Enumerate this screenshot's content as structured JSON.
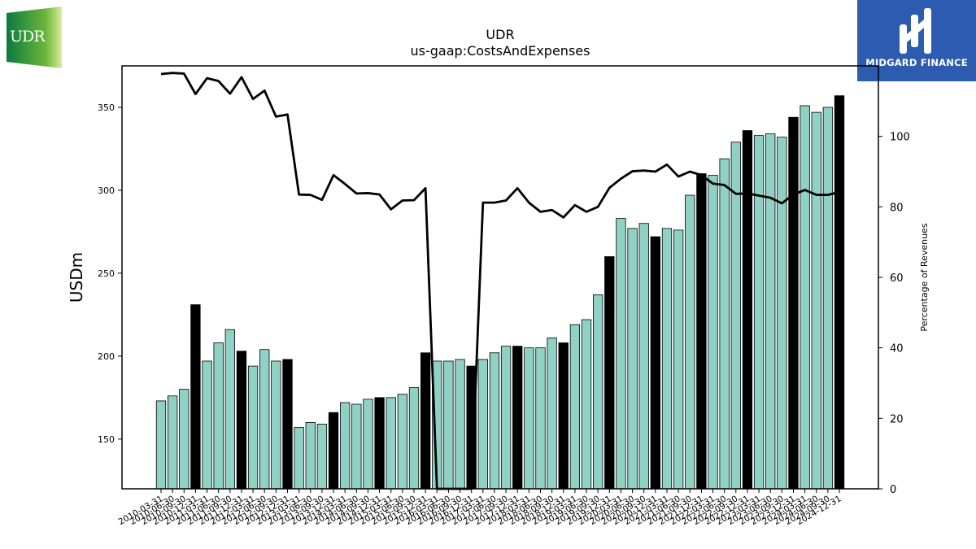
{
  "logos": {
    "left_text": "UDR",
    "right_text": "MIDGARD FINANCE"
  },
  "colors": {
    "bar_default": "#8fd1c4",
    "bar_highlight": "#000000",
    "line": "#000000"
  },
  "chart_data": {
    "type": "bar",
    "title": "UDR",
    "subtitle": "us-gaap:CostsAndExpenses",
    "ylabel": "USDm",
    "y2label": "Percentage of Revenues",
    "ylim": [
      120,
      375
    ],
    "y2lim": [
      0,
      120
    ],
    "yticks": [
      150,
      200,
      250,
      300,
      350
    ],
    "y2ticks": [
      0,
      20,
      40,
      60,
      80,
      100
    ],
    "grid": false,
    "categories": [
      "2010-03-31",
      "2010-06-30",
      "2010-09-30",
      "2010-12-31",
      "2011-03-31",
      "2011-06-30",
      "2011-09-30",
      "2011-12-31",
      "2012-03-31",
      "2012-06-30",
      "2012-09-30",
      "2012-12-31",
      "2013-03-31",
      "2013-06-30",
      "2013-09-30",
      "2013-12-31",
      "2014-03-31",
      "2014-06-30",
      "2014-09-30",
      "2014-12-31",
      "2015-03-31",
      "2015-06-30",
      "2015-09-30",
      "2015-12-31",
      "2016-03-31",
      "2016-06-30",
      "2016-09-30",
      "2016-12-31",
      "2017-03-31",
      "2017-06-30",
      "2017-09-30",
      "2017-12-31",
      "2018-03-31",
      "2018-06-30",
      "2018-09-30",
      "2018-12-31",
      "2019-03-31",
      "2019-06-30",
      "2019-09-30",
      "2019-12-31",
      "2020-03-31",
      "2020-06-30",
      "2020-09-30",
      "2020-12-31",
      "2021-03-31",
      "2021-06-30",
      "2021-09-30",
      "2021-12-31",
      "2022-03-31",
      "2022-06-30",
      "2022-09-30",
      "2022-12-31",
      "2023-03-31",
      "2023-06-30",
      "2023-09-30",
      "2023-12-31",
      "2024-03-31",
      "2024-06-30",
      "2024-09-30",
      "2024-12-31"
    ],
    "series": [
      {
        "type": "bar",
        "axis": "left",
        "values": [
          173,
          176,
          180,
          231,
          197,
          208,
          216,
          203,
          194,
          204,
          197,
          198,
          157,
          160,
          159,
          166,
          172,
          171,
          174,
          175,
          175,
          177,
          181,
          202,
          197,
          197,
          198,
          194,
          198,
          202,
          206,
          206,
          205,
          205,
          211,
          208,
          219,
          222,
          237,
          260,
          283,
          277,
          280,
          272,
          277,
          276,
          297,
          310,
          309,
          319,
          329,
          336,
          333,
          334,
          332,
          344,
          351,
          347,
          350,
          357
        ],
        "highlight": [
          false,
          false,
          false,
          true,
          false,
          false,
          false,
          true,
          false,
          false,
          false,
          true,
          false,
          false,
          false,
          true,
          false,
          false,
          false,
          true,
          false,
          false,
          false,
          true,
          false,
          false,
          false,
          true,
          false,
          false,
          false,
          true,
          false,
          false,
          false,
          true,
          false,
          false,
          false,
          true,
          false,
          false,
          false,
          true,
          false,
          false,
          false,
          true,
          false,
          false,
          false,
          true,
          false,
          false,
          false,
          true,
          false,
          false,
          false,
          true
        ]
      },
      {
        "type": "line",
        "axis": "right",
        "values": [
          117.7,
          118,
          117.8,
          112,
          116.5,
          115.7,
          112.1,
          116.8,
          110.6,
          113,
          105.6,
          106.2,
          83.5,
          83.4,
          82,
          89,
          86.5,
          83.8,
          83.9,
          83.5,
          79.3,
          81.8,
          81.9,
          85.3,
          0,
          0,
          0,
          0,
          81.2,
          81.2,
          81.8,
          85.3,
          81.2,
          78.6,
          79.1,
          77,
          80.5,
          78.6,
          80,
          85.4,
          88,
          90.1,
          90.3,
          90,
          92,
          88.6,
          90,
          89,
          86.6,
          86.2,
          83.7,
          83.8,
          83.2,
          82.6,
          81,
          83.5,
          84.8,
          83.4,
          83.4,
          84.2
        ]
      }
    ]
  }
}
